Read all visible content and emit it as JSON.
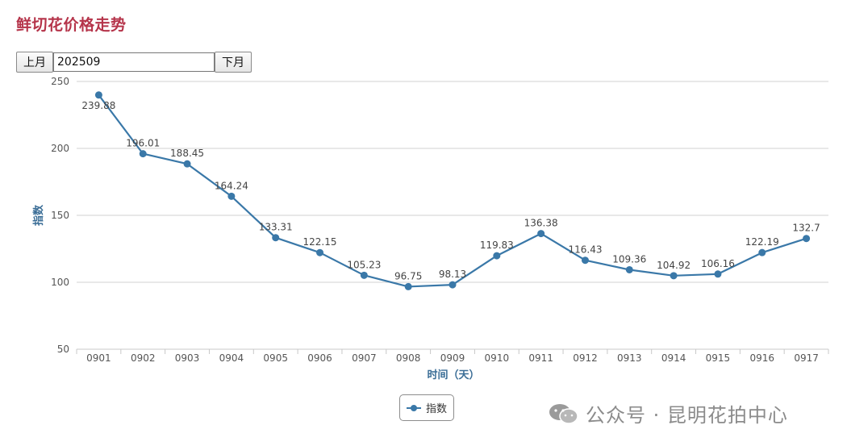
{
  "page": {
    "title": "鲜切花价格走势",
    "prev_label": "上月",
    "next_label": "下月",
    "month_value": "202509"
  },
  "chart_data": {
    "type": "line",
    "title": "鲜切花价格走势",
    "xlabel": "时间（天）",
    "ylabel": "指数",
    "ylim": [
      50,
      250
    ],
    "yticks": [
      50,
      100,
      150,
      200,
      250
    ],
    "grid": true,
    "legend_position": "bottom-center",
    "categories": [
      "0901",
      "0902",
      "0903",
      "0904",
      "0905",
      "0906",
      "0907",
      "0908",
      "0909",
      "0910",
      "0911",
      "0912",
      "0913",
      "0914",
      "0915",
      "0916",
      "0917"
    ],
    "series": [
      {
        "name": "指数",
        "color": "#3a78a8",
        "values": [
          239.88,
          196.01,
          188.45,
          164.24,
          133.31,
          122.15,
          105.23,
          96.75,
          98.13,
          119.83,
          136.38,
          116.43,
          109.36,
          104.92,
          106.16,
          122.19,
          132.7
        ],
        "labels": [
          "239.88",
          "196.01",
          "188.45",
          "164.24",
          "133.31",
          "122.15",
          "105.23",
          "96.75",
          "98.13",
          "119.83",
          "136.38",
          "116.43",
          "109.36",
          "104.92",
          "106.16",
          "122.19",
          "132.7"
        ]
      }
    ]
  },
  "watermark": {
    "text": "公众号 · 昆明花拍中心",
    "icon": "wechat-icon"
  }
}
